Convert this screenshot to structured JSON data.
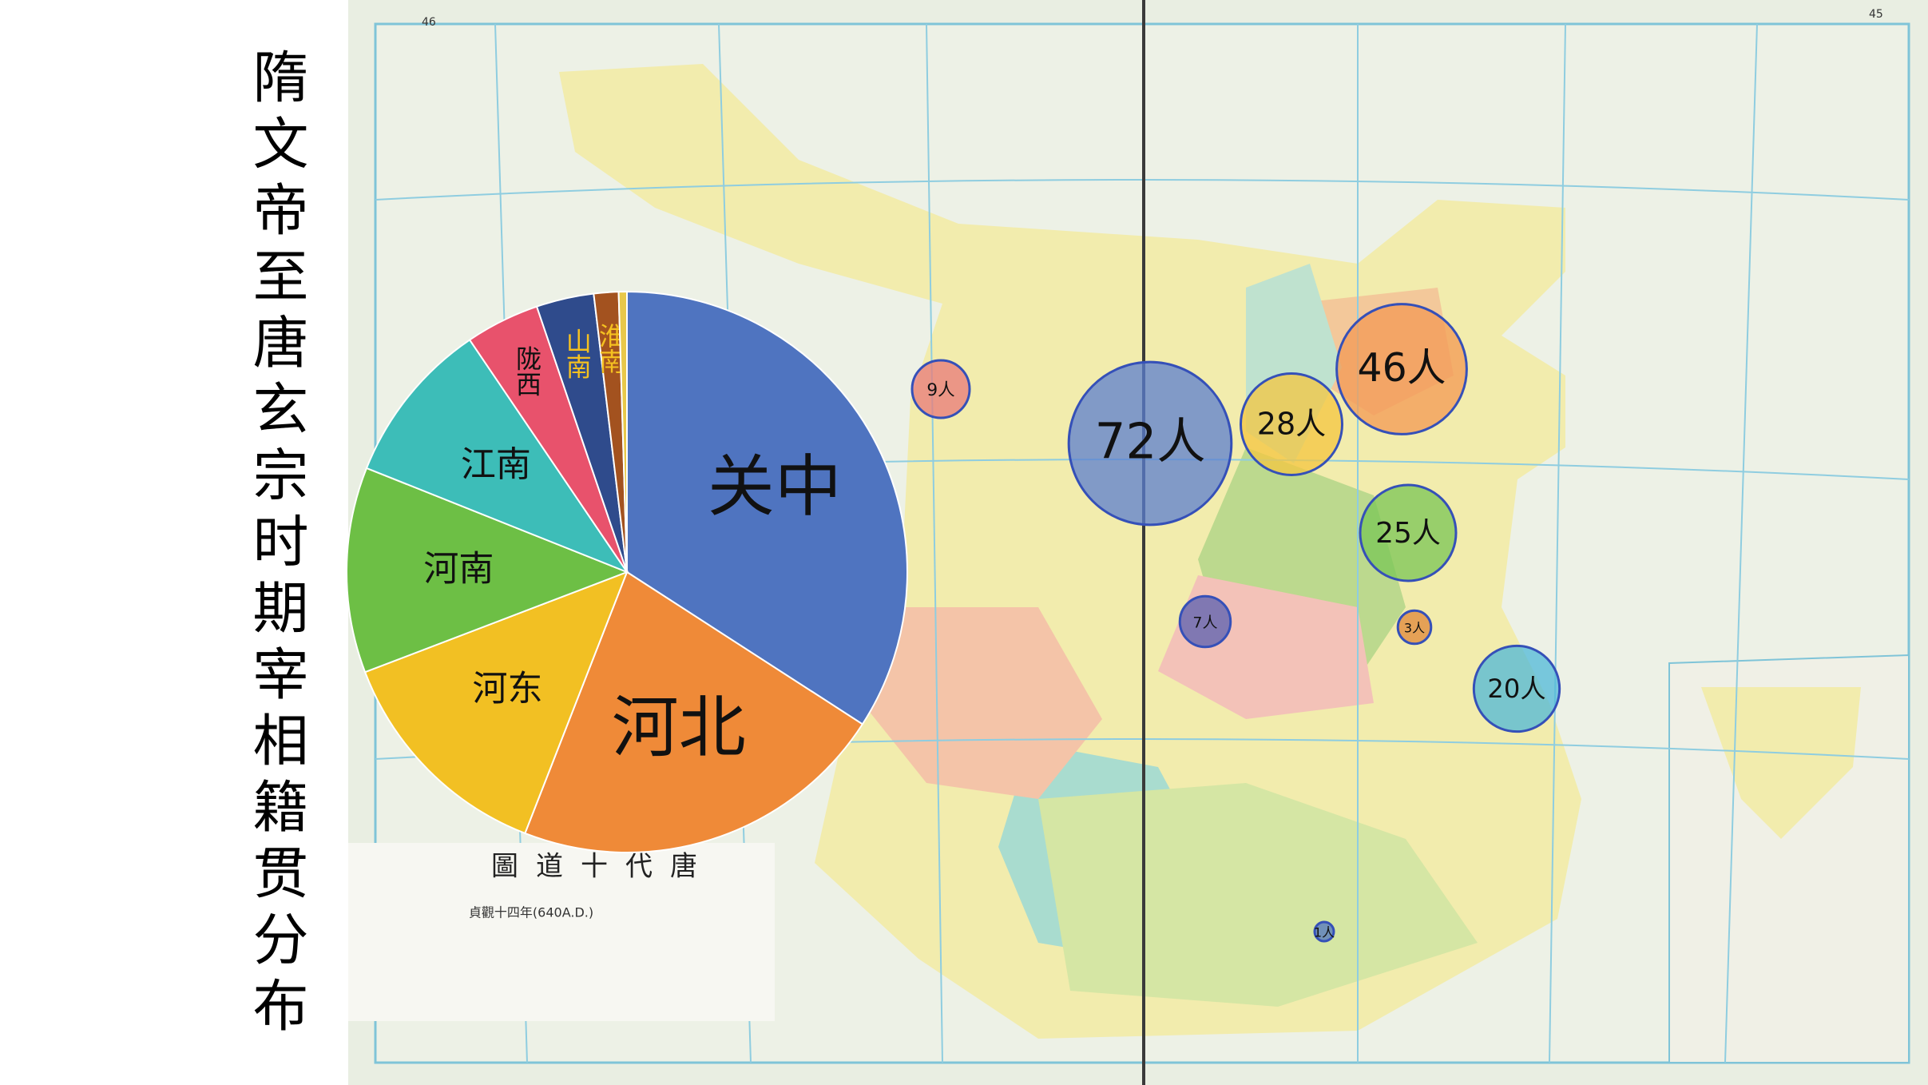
{
  "slide": {
    "title": "隋文帝至唐玄宗时期宰相籍贯分布"
  },
  "map": {
    "caption": "唐代十道圖",
    "date": "貞觀十四年(640A.D.)",
    "page_left": "46",
    "page_right": "45"
  },
  "chart_data": [
    {
      "type": "pie",
      "categories": [
        "关中",
        "河北",
        "河东",
        "河南",
        "江南",
        "陇西",
        "山南",
        "淮南",
        null
      ],
      "values": [
        72,
        46,
        28,
        25,
        20,
        9,
        7,
        3,
        1
      ],
      "colors": [
        "#4f74c0",
        "#ef8a38",
        "#f2c023",
        "#6dbf45",
        "#3dbdb8",
        "#e8526c",
        "#2f4b8c",
        "#a3521f",
        "#e8c84a"
      ]
    },
    {
      "type": "bubble",
      "values": [
        72,
        46,
        28,
        25,
        20,
        9,
        7,
        3,
        1
      ],
      "value_labels": [
        "72人",
        "46人",
        "28人",
        "25人",
        "20人",
        "9人",
        "7人",
        "3人",
        "1人"
      ],
      "colors": [
        "#5b7fd0",
        "#f39a54",
        "#f4c640",
        "#79c655",
        "#4fb8d8",
        "#e87a7a",
        "#5a5fb0",
        "#e0883a",
        "#4f74c0"
      ]
    }
  ]
}
